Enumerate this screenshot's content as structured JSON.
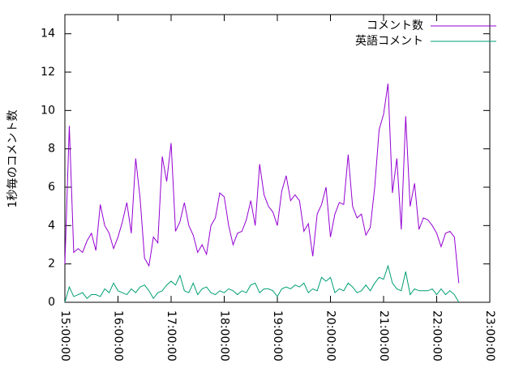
{
  "chart_data": {
    "type": "line",
    "y_label": "1秒毎のコメント数",
    "x": [
      "15:00:00",
      "15:05:00",
      "15:10:00",
      "15:15:00",
      "15:20:00",
      "15:25:00",
      "15:30:00",
      "15:35:00",
      "15:40:00",
      "15:45:00",
      "15:50:00",
      "15:55:00",
      "16:00:00",
      "16:05:00",
      "16:10:00",
      "16:15:00",
      "16:20:00",
      "16:25:00",
      "16:30:00",
      "16:35:00",
      "16:40:00",
      "16:45:00",
      "16:50:00",
      "16:55:00",
      "17:00:00",
      "17:05:00",
      "17:10:00",
      "17:15:00",
      "17:20:00",
      "17:25:00",
      "17:30:00",
      "17:35:00",
      "17:40:00",
      "17:45:00",
      "17:50:00",
      "17:55:00",
      "18:00:00",
      "18:05:00",
      "18:10:00",
      "18:15:00",
      "18:20:00",
      "18:25:00",
      "18:30:00",
      "18:35:00",
      "18:40:00",
      "18:45:00",
      "18:50:00",
      "18:55:00",
      "19:00:00",
      "19:05:00",
      "19:10:00",
      "19:15:00",
      "19:20:00",
      "19:25:00",
      "19:30:00",
      "19:35:00",
      "19:40:00",
      "19:45:00",
      "19:50:00",
      "19:55:00",
      "20:00:00",
      "20:05:00",
      "20:10:00",
      "20:15:00",
      "20:20:00",
      "20:25:00",
      "20:30:00",
      "20:35:00",
      "20:40:00",
      "20:45:00",
      "20:50:00",
      "20:55:00",
      "21:00:00",
      "21:05:00",
      "21:10:00",
      "21:15:00",
      "21:20:00",
      "21:25:00",
      "21:30:00",
      "21:35:00",
      "21:40:00",
      "21:45:00",
      "21:50:00",
      "21:55:00",
      "22:00:00",
      "22:05:00",
      "22:10:00",
      "22:15:00",
      "22:20:00",
      "22:25:00"
    ],
    "series": [
      {
        "name": "コメント数",
        "color": "#9400d3",
        "values": [
          2.0,
          9.2,
          2.6,
          2.8,
          2.6,
          3.2,
          3.6,
          2.7,
          5.1,
          4.0,
          3.6,
          2.8,
          3.4,
          4.2,
          5.2,
          3.6,
          7.5,
          5.4,
          2.3,
          1.9,
          3.4,
          3.1,
          7.6,
          6.3,
          8.3,
          3.7,
          4.2,
          5.2,
          4.0,
          3.5,
          2.6,
          3.0,
          2.5,
          4.0,
          4.4,
          5.7,
          5.5,
          4.0,
          3.0,
          3.6,
          3.7,
          4.3,
          5.3,
          4.0,
          7.2,
          5.6,
          5.0,
          4.7,
          4.0,
          5.8,
          6.6,
          5.3,
          5.6,
          5.3,
          3.7,
          4.1,
          2.4,
          4.6,
          5.1,
          6.0,
          3.4,
          4.6,
          5.2,
          5.1,
          7.7,
          5.0,
          4.4,
          4.6,
          3.5,
          3.9,
          6.0,
          9.0,
          9.8,
          11.4,
          5.7,
          7.5,
          3.8,
          9.7,
          5.0,
          6.2,
          3.8,
          4.4,
          4.3,
          4.0,
          3.6,
          2.9,
          3.6,
          3.7,
          3.4,
          1.0
        ]
      },
      {
        "name": "英語コメント",
        "color": "#009e73",
        "values": [
          0.0,
          0.8,
          0.3,
          0.4,
          0.5,
          0.2,
          0.4,
          0.4,
          0.3,
          0.7,
          0.5,
          1.0,
          0.6,
          0.5,
          0.4,
          0.7,
          0.5,
          0.8,
          0.9,
          0.6,
          0.2,
          0.5,
          0.6,
          0.9,
          1.1,
          0.9,
          1.4,
          0.6,
          0.5,
          1.0,
          0.4,
          0.7,
          0.8,
          0.5,
          0.4,
          0.6,
          0.5,
          0.7,
          0.6,
          0.4,
          0.6,
          0.5,
          0.9,
          1.0,
          0.5,
          0.7,
          0.7,
          0.6,
          0.3,
          0.7,
          0.8,
          0.7,
          0.9,
          0.8,
          1.0,
          0.5,
          0.7,
          0.6,
          1.3,
          1.1,
          1.3,
          0.5,
          0.7,
          0.6,
          1.0,
          0.8,
          0.5,
          0.6,
          0.9,
          0.6,
          1.0,
          1.3,
          1.2,
          1.9,
          1.0,
          0.7,
          0.6,
          1.6,
          0.4,
          0.7,
          0.6,
          0.6,
          0.6,
          0.7,
          0.4,
          0.7,
          0.4,
          0.6,
          0.4,
          0.0
        ]
      }
    ],
    "xlim": [
      "15:00:00",
      "23:00:00"
    ],
    "xticks": [
      "15:00:00",
      "16:00:00",
      "17:00:00",
      "18:00:00",
      "19:00:00",
      "20:00:00",
      "21:00:00",
      "22:00:00",
      "23:00:00"
    ],
    "ylim": [
      0,
      15
    ],
    "yticks": [
      0,
      2,
      4,
      6,
      8,
      10,
      12,
      14
    ],
    "legend": "top-right"
  }
}
